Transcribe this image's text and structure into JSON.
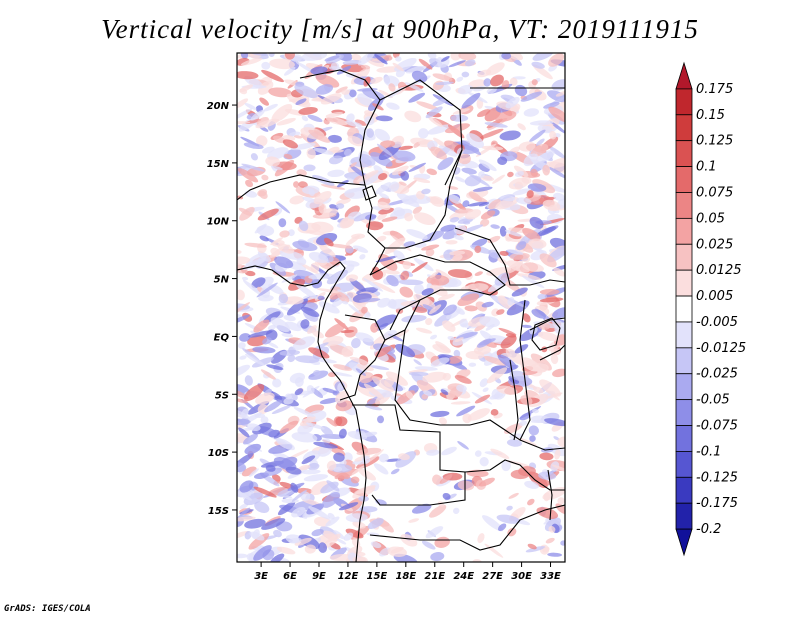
{
  "chart_data": {
    "type": "heatmap",
    "title": "Vertical velocity [m/s] at 900hPa, VT: 2019111915",
    "x_tick_labels": [
      "3E",
      "6E",
      "9E",
      "12E",
      "15E",
      "18E",
      "21E",
      "24E",
      "27E",
      "30E",
      "33E"
    ],
    "x_ticks": [
      3,
      6,
      9,
      12,
      15,
      18,
      21,
      24,
      27,
      30,
      33
    ],
    "xlim": [
      0.5,
      34.5
    ],
    "y_tick_labels": [
      "20N",
      "15N",
      "10N",
      "5N",
      "EQ",
      "5S",
      "10S",
      "15S"
    ],
    "y_ticks": [
      20,
      15,
      10,
      5,
      0,
      -5,
      -10,
      -15
    ],
    "ylim": [
      -19.5,
      24.5
    ],
    "colorbar_levels": [
      "0.175",
      "0.15",
      "0.125",
      "0.1",
      "0.075",
      "0.05",
      "0.025",
      "0.0125",
      "0.005",
      "-0.005",
      "-0.0125",
      "-0.025",
      "-0.05",
      "-0.075",
      "-0.1",
      "-0.125",
      "-0.175",
      "-0.2"
    ],
    "colorbar_colors": [
      "#b2182b",
      "#c0272d",
      "#cf3c3c",
      "#da5252",
      "#e46a6a",
      "#ec8585",
      "#f3a3a3",
      "#f7c2c2",
      "#fbdede",
      "#ffffff",
      "#e2e2fb",
      "#c6c6f6",
      "#aaaaf0",
      "#8e8ee8",
      "#7272de",
      "#5656d2",
      "#3a3ac0",
      "#2222aa",
      "#11119a"
    ]
  },
  "credit": "GrADS: IGES/COLA",
  "colors": {
    "positive": "#e05050",
    "negative": "#5050e0",
    "border": "#000000"
  }
}
